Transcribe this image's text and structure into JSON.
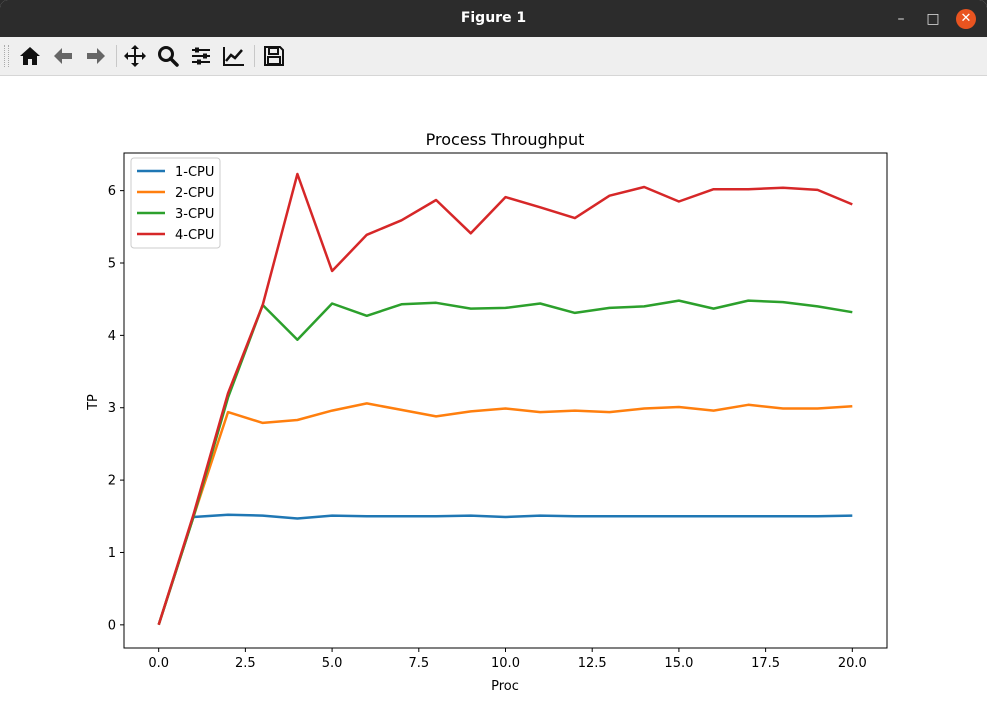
{
  "window": {
    "title": "Figure 1"
  },
  "toolbar": {
    "buttons": [
      {
        "name": "home",
        "icon": "home-icon"
      },
      {
        "name": "back",
        "icon": "arrow-left-icon"
      },
      {
        "name": "forward",
        "icon": "arrow-right-icon"
      },
      {
        "name": "pan",
        "icon": "move-icon"
      },
      {
        "name": "zoom",
        "icon": "magnifier-icon"
      },
      {
        "name": "configure-subplots",
        "icon": "sliders-icon"
      },
      {
        "name": "edit-axis",
        "icon": "line-chart-icon"
      },
      {
        "name": "save",
        "icon": "floppy-disk-icon"
      }
    ]
  },
  "chart_data": {
    "type": "line",
    "title": "Process Throughput",
    "xlabel": "Proc",
    "ylabel": "TP",
    "xlim": [
      -1,
      21
    ],
    "ylim": [
      -0.32,
      6.52
    ],
    "xticks": [
      0.0,
      2.5,
      5.0,
      7.5,
      10.0,
      12.5,
      15.0,
      17.5,
      20.0
    ],
    "xtick_labels": [
      "0.0",
      "2.5",
      "5.0",
      "7.5",
      "10.0",
      "12.5",
      "15.0",
      "17.5",
      "20.0"
    ],
    "yticks": [
      0,
      1,
      2,
      3,
      4,
      5,
      6
    ],
    "ytick_labels": [
      "0",
      "1",
      "2",
      "3",
      "4",
      "5",
      "6"
    ],
    "grid": false,
    "legend_position": "top-left",
    "x": [
      0,
      1,
      2,
      3,
      4,
      5,
      6,
      7,
      8,
      9,
      10,
      11,
      12,
      13,
      14,
      15,
      16,
      17,
      18,
      19,
      20
    ],
    "series": [
      {
        "name": "1-CPU",
        "color": "#1f77b4",
        "values": [
          0.0,
          1.49,
          1.52,
          1.51,
          1.47,
          1.51,
          1.5,
          1.5,
          1.5,
          1.51,
          1.49,
          1.51,
          1.5,
          1.5,
          1.5,
          1.5,
          1.5,
          1.5,
          1.5,
          1.5,
          1.51
        ]
      },
      {
        "name": "2-CPU",
        "color": "#ff7f0e",
        "values": [
          0.0,
          1.49,
          2.94,
          2.79,
          2.83,
          2.96,
          3.06,
          2.97,
          2.88,
          2.95,
          2.99,
          2.94,
          2.96,
          2.94,
          2.99,
          3.01,
          2.96,
          3.04,
          2.99,
          2.99,
          3.02
        ]
      },
      {
        "name": "3-CPU",
        "color": "#2ca02c",
        "values": [
          0.0,
          1.49,
          3.14,
          4.42,
          3.94,
          4.44,
          4.27,
          4.43,
          4.45,
          4.37,
          4.38,
          4.44,
          4.31,
          4.38,
          4.4,
          4.48,
          4.37,
          4.48,
          4.46,
          4.4,
          4.32
        ]
      },
      {
        "name": "4-CPU",
        "color": "#d62728",
        "values": [
          0.0,
          1.52,
          3.2,
          4.42,
          6.23,
          4.89,
          5.39,
          5.59,
          5.87,
          5.41,
          5.91,
          5.77,
          5.62,
          5.93,
          6.05,
          5.85,
          6.02,
          6.02,
          6.04,
          6.01,
          5.81
        ]
      }
    ]
  }
}
